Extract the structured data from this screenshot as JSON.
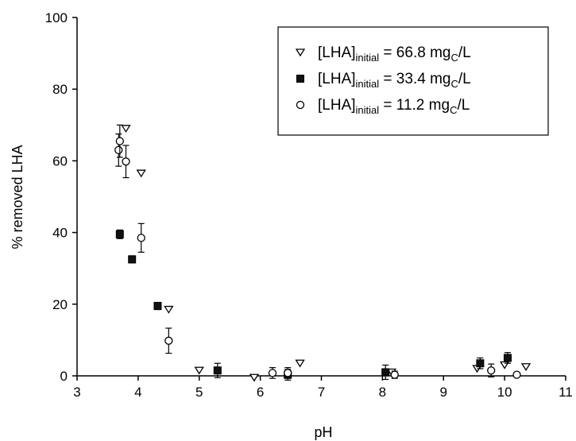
{
  "chart_data": {
    "type": "scatter",
    "title": "",
    "xlabel": "pH",
    "ylabel": "% removed LHA",
    "xlim": [
      3,
      11
    ],
    "ylim": [
      0,
      100
    ],
    "xticks": [
      3,
      4,
      5,
      6,
      7,
      8,
      9,
      10,
      11
    ],
    "yticks": [
      0,
      20,
      40,
      60,
      80,
      100
    ],
    "grid": false,
    "legend_position": "top-right",
    "series": [
      {
        "name_main": "[LHA]",
        "name_sub": "initial",
        "name_value": " = 66.8 mg",
        "name_sub2": "C",
        "name_unit": "/L",
        "marker": "triangle-down-open",
        "points": [
          {
            "x": 3.8,
            "y": 69.0,
            "err": 0
          },
          {
            "x": 4.05,
            "y": 56.5,
            "err": 0
          },
          {
            "x": 4.5,
            "y": 18.5,
            "err": 0
          },
          {
            "x": 5.0,
            "y": 1.5,
            "err": 0
          },
          {
            "x": 5.9,
            "y": -0.5,
            "err": 0
          },
          {
            "x": 6.65,
            "y": 3.5,
            "err": 0
          },
          {
            "x": 8.15,
            "y": 1.0,
            "err": 0
          },
          {
            "x": 9.55,
            "y": 2.0,
            "err": 0
          },
          {
            "x": 10.0,
            "y": 3.0,
            "err": 0
          },
          {
            "x": 10.35,
            "y": 2.5,
            "err": 0
          }
        ]
      },
      {
        "name_main": "[LHA]",
        "name_sub": "initial",
        "name_value": " = 33.4 mg",
        "name_sub2": "C",
        "name_unit": "/L",
        "marker": "square-filled",
        "points": [
          {
            "x": 3.7,
            "y": 39.5,
            "err": 1.2
          },
          {
            "x": 3.9,
            "y": 32.5,
            "err": 1.0
          },
          {
            "x": 4.32,
            "y": 19.5,
            "err": 1.0
          },
          {
            "x": 5.3,
            "y": 1.5,
            "err": 2.0
          },
          {
            "x": 6.45,
            "y": 0.3,
            "err": 1.5
          },
          {
            "x": 8.05,
            "y": 1.0,
            "err": 2.0
          },
          {
            "x": 9.6,
            "y": 3.5,
            "err": 1.5
          },
          {
            "x": 10.05,
            "y": 5.0,
            "err": 1.5
          }
        ]
      },
      {
        "name_main": "[LHA]",
        "name_sub": "initial",
        "name_value": " = 11.2 mg",
        "name_sub2": "C",
        "name_unit": "/L",
        "marker": "circle-open",
        "points": [
          {
            "x": 3.68,
            "y": 63.0,
            "err": 4.5
          },
          {
            "x": 3.7,
            "y": 65.5,
            "err": 4.5
          },
          {
            "x": 3.8,
            "y": 59.8,
            "err": 4.5
          },
          {
            "x": 4.05,
            "y": 38.5,
            "err": 4.0
          },
          {
            "x": 4.5,
            "y": 9.8,
            "err": 3.5
          },
          {
            "x": 6.2,
            "y": 0.8,
            "err": 1.5
          },
          {
            "x": 6.45,
            "y": 0.8,
            "err": 1.5
          },
          {
            "x": 8.2,
            "y": 0.3,
            "err": 1.0
          },
          {
            "x": 9.78,
            "y": 1.5,
            "err": 1.8
          },
          {
            "x": 10.2,
            "y": 0.3,
            "err": 0.5
          }
        ]
      }
    ]
  }
}
